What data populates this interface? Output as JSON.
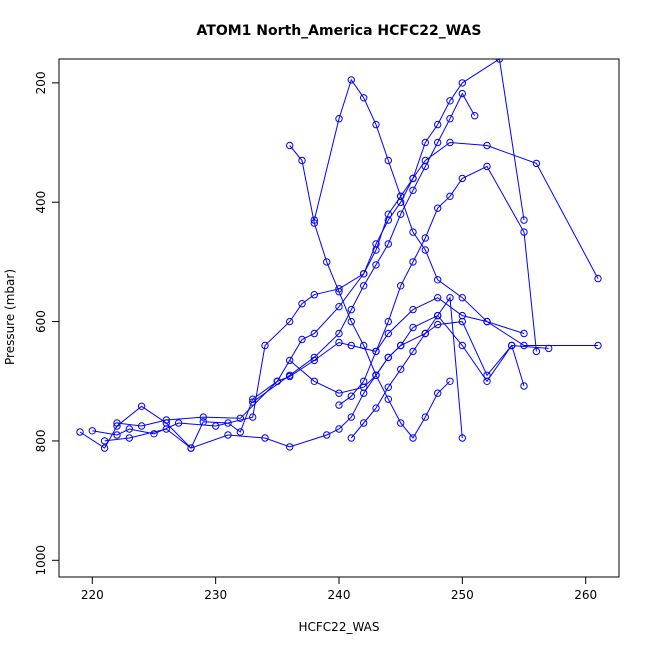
{
  "chart_data": {
    "type": "line",
    "title": "ATOM1 North_America HCFC22_WAS",
    "xlabel": "HCFC22_WAS",
    "ylabel": "Pressure (mbar)",
    "xlim": [
      217.3,
      262.7
    ],
    "ylim": [
      1028,
      160
    ],
    "y_reversed": true,
    "x_ticks": [
      220,
      230,
      240,
      250,
      260
    ],
    "y_ticks": [
      200,
      400,
      600,
      800,
      1000
    ],
    "grid": false,
    "series_color": "#0000ff",
    "series": [
      {
        "x": [
          219,
          221,
          222,
          224,
          226,
          228,
          229,
          231,
          232,
          233,
          235,
          236,
          238,
          240,
          241,
          243,
          244,
          246,
          248,
          250,
          252,
          255,
          261
        ],
        "y": [
          785,
          812,
          775,
          742,
          770,
          812,
          768,
          770,
          785,
          730,
          700,
          692,
          665,
          635,
          640,
          650,
          620,
          580,
          560,
          590,
          600,
          640,
          640
        ]
      },
      {
        "x": [
          220,
          222,
          223,
          225,
          227,
          230,
          233,
          234,
          236,
          237,
          238,
          240,
          242,
          243,
          244,
          245,
          246,
          247,
          249,
          252,
          256,
          261
        ],
        "y": [
          783,
          790,
          780,
          788,
          770,
          775,
          760,
          640,
          600,
          570,
          555,
          545,
          520,
          480,
          420,
          390,
          360,
          330,
          300,
          305,
          335,
          528
        ]
      },
      {
        "x": [
          221,
          223,
          226,
          228,
          231,
          234,
          236,
          239,
          240,
          241,
          242,
          243,
          244,
          245,
          247,
          248,
          250,
          252,
          254,
          257
        ],
        "y": [
          800,
          795,
          780,
          812,
          790,
          795,
          810,
          790,
          780,
          760,
          720,
          690,
          660,
          640,
          620,
          605,
          600,
          690,
          640,
          645
        ]
      },
      {
        "x": [
          222,
          224,
          226,
          229,
          232,
          235,
          237,
          238,
          240,
          242,
          243,
          244,
          245,
          246,
          247,
          248,
          249,
          250,
          253,
          255
        ],
        "y": [
          770,
          775,
          765,
          760,
          762,
          700,
          630,
          620,
          575,
          520,
          470,
          430,
          400,
          360,
          300,
          270,
          230,
          200,
          160,
          430
        ]
      },
      {
        "x": [
          233,
          236,
          238,
          240,
          241,
          242,
          243,
          244,
          245,
          246,
          247,
          248,
          249,
          250,
          251
        ],
        "y": [
          735,
          690,
          660,
          620,
          580,
          540,
          505,
          470,
          420,
          380,
          340,
          300,
          260,
          218,
          255
        ]
      },
      {
        "x": [
          236,
          237,
          238,
          239,
          240,
          241,
          242,
          243,
          244,
          245,
          246,
          247,
          248,
          249
        ],
        "y": [
          305,
          330,
          435,
          500,
          550,
          600,
          640,
          690,
          730,
          770,
          795,
          760,
          720,
          700
        ]
      },
      {
        "x": [
          238,
          240,
          241,
          242,
          243,
          244,
          245,
          246,
          247,
          248,
          250,
          252,
          255
        ],
        "y": [
          430,
          260,
          195,
          225,
          270,
          330,
          390,
          450,
          480,
          530,
          560,
          600,
          620
        ]
      },
      {
        "x": [
          240,
          241,
          242,
          243,
          244,
          245,
          246,
          247,
          248,
          249,
          250,
          252,
          255,
          256
        ],
        "y": [
          740,
          725,
          700,
          650,
          600,
          540,
          500,
          460,
          410,
          390,
          360,
          340,
          450,
          650
        ]
      },
      {
        "x": [
          236,
          238,
          240,
          242,
          243,
          244,
          245,
          246,
          248,
          250,
          252,
          254,
          255
        ],
        "y": [
          665,
          700,
          720,
          710,
          690,
          660,
          640,
          610,
          590,
          640,
          700,
          640,
          708
        ]
      },
      {
        "x": [
          241,
          242,
          243,
          244,
          245,
          246,
          247,
          248,
          249,
          250
        ],
        "y": [
          795,
          770,
          745,
          710,
          680,
          650,
          620,
          590,
          560,
          795
        ]
      }
    ]
  }
}
